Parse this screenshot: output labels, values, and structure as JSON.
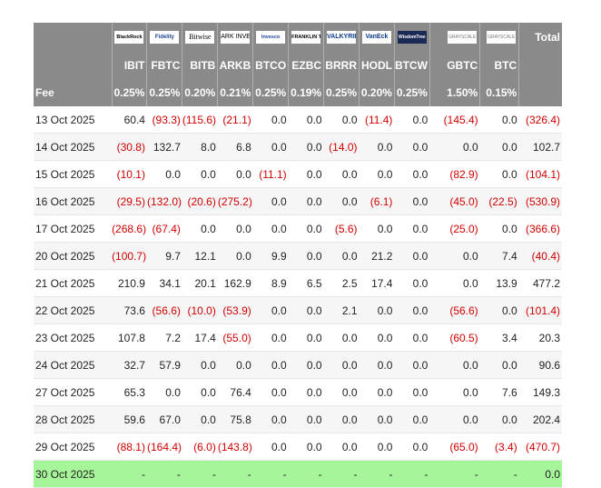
{
  "logos": [
    "BlackRock",
    "Fidelity",
    "Bitwise",
    "ARK INVEST",
    "Invesco",
    "FRANKLIN TEMPLETON",
    "VALKYRIE",
    "VanEck",
    "WisdomTree",
    "GRAYSCALE",
    "GRAYSCALE"
  ],
  "header": {
    "total_label": "Total",
    "tickers": [
      "IBIT",
      "FBTC",
      "BITB",
      "ARKB",
      "BTCO",
      "EZBC",
      "BRRR",
      "HODL",
      "BTCW",
      "GBTC",
      "BTC"
    ],
    "fee_label": "Fee",
    "fees": [
      "0.25%",
      "0.25%",
      "0.20%",
      "0.21%",
      "0.25%",
      "0.19%",
      "0.25%",
      "0.20%",
      "0.25%",
      "1.50%",
      "0.15%"
    ]
  },
  "rows": [
    {
      "date": "13 Oct 2025",
      "values": [
        "60.4",
        "(93.3)",
        "(115.6)",
        "(21.1)",
        "0.0",
        "0.0",
        "0.0",
        "(11.4)",
        "0.0",
        "(145.4)",
        "0.0"
      ],
      "total": "(326.4)"
    },
    {
      "date": "14 Oct 2025",
      "values": [
        "(30.8)",
        "132.7",
        "8.0",
        "6.8",
        "0.0",
        "0.0",
        "(14.0)",
        "0.0",
        "0.0",
        "0.0",
        "0.0"
      ],
      "total": "102.7"
    },
    {
      "date": "15 Oct 2025",
      "values": [
        "(10.1)",
        "0.0",
        "0.0",
        "0.0",
        "(11.1)",
        "0.0",
        "0.0",
        "0.0",
        "0.0",
        "(82.9)",
        "0.0"
      ],
      "total": "(104.1)"
    },
    {
      "date": "16 Oct 2025",
      "values": [
        "(29.5)",
        "(132.0)",
        "(20.6)",
        "(275.2)",
        "0.0",
        "0.0",
        "0.0",
        "(6.1)",
        "0.0",
        "(45.0)",
        "(22.5)"
      ],
      "total": "(530.9)"
    },
    {
      "date": "17 Oct 2025",
      "values": [
        "(268.6)",
        "(67.4)",
        "0.0",
        "0.0",
        "0.0",
        "0.0",
        "(5.6)",
        "0.0",
        "0.0",
        "(25.0)",
        "0.0"
      ],
      "total": "(366.6)"
    },
    {
      "date": "20 Oct 2025",
      "values": [
        "(100.7)",
        "9.7",
        "12.1",
        "0.0",
        "9.9",
        "0.0",
        "0.0",
        "21.2",
        "0.0",
        "0.0",
        "7.4"
      ],
      "total": "(40.4)"
    },
    {
      "date": "21 Oct 2025",
      "values": [
        "210.9",
        "34.1",
        "20.1",
        "162.9",
        "8.9",
        "6.5",
        "2.5",
        "17.4",
        "0.0",
        "0.0",
        "13.9"
      ],
      "total": "477.2"
    },
    {
      "date": "22 Oct 2025",
      "values": [
        "73.6",
        "(56.6)",
        "(10.0)",
        "(53.9)",
        "0.0",
        "0.0",
        "2.1",
        "0.0",
        "0.0",
        "(56.6)",
        "0.0"
      ],
      "total": "(101.4)"
    },
    {
      "date": "23 Oct 2025",
      "values": [
        "107.8",
        "7.2",
        "17.4",
        "(55.0)",
        "0.0",
        "0.0",
        "0.0",
        "0.0",
        "0.0",
        "(60.5)",
        "3.4"
      ],
      "total": "20.3"
    },
    {
      "date": "24 Oct 2025",
      "values": [
        "32.7",
        "57.9",
        "0.0",
        "0.0",
        "0.0",
        "0.0",
        "0.0",
        "0.0",
        "0.0",
        "0.0",
        "0.0"
      ],
      "total": "90.6"
    },
    {
      "date": "27 Oct 2025",
      "values": [
        "65.3",
        "0.0",
        "0.0",
        "76.4",
        "0.0",
        "0.0",
        "0.0",
        "0.0",
        "0.0",
        "0.0",
        "7.6"
      ],
      "total": "149.3"
    },
    {
      "date": "28 Oct 2025",
      "values": [
        "59.6",
        "67.0",
        "0.0",
        "75.8",
        "0.0",
        "0.0",
        "0.0",
        "0.0",
        "0.0",
        "0.0",
        "0.0"
      ],
      "total": "202.4"
    },
    {
      "date": "29 Oct 2025",
      "values": [
        "(88.1)",
        "(164.4)",
        "(6.0)",
        "(143.8)",
        "0.0",
        "0.0",
        "0.0",
        "0.0",
        "0.0",
        "(65.0)",
        "(3.4)"
      ],
      "total": "(470.7)"
    },
    {
      "date": "30 Oct 2025",
      "values": [
        "-",
        "-",
        "-",
        "-",
        "-",
        "-",
        "-",
        "-",
        "-",
        "-",
        "-"
      ],
      "total": "0.0",
      "highlight": true
    }
  ]
}
